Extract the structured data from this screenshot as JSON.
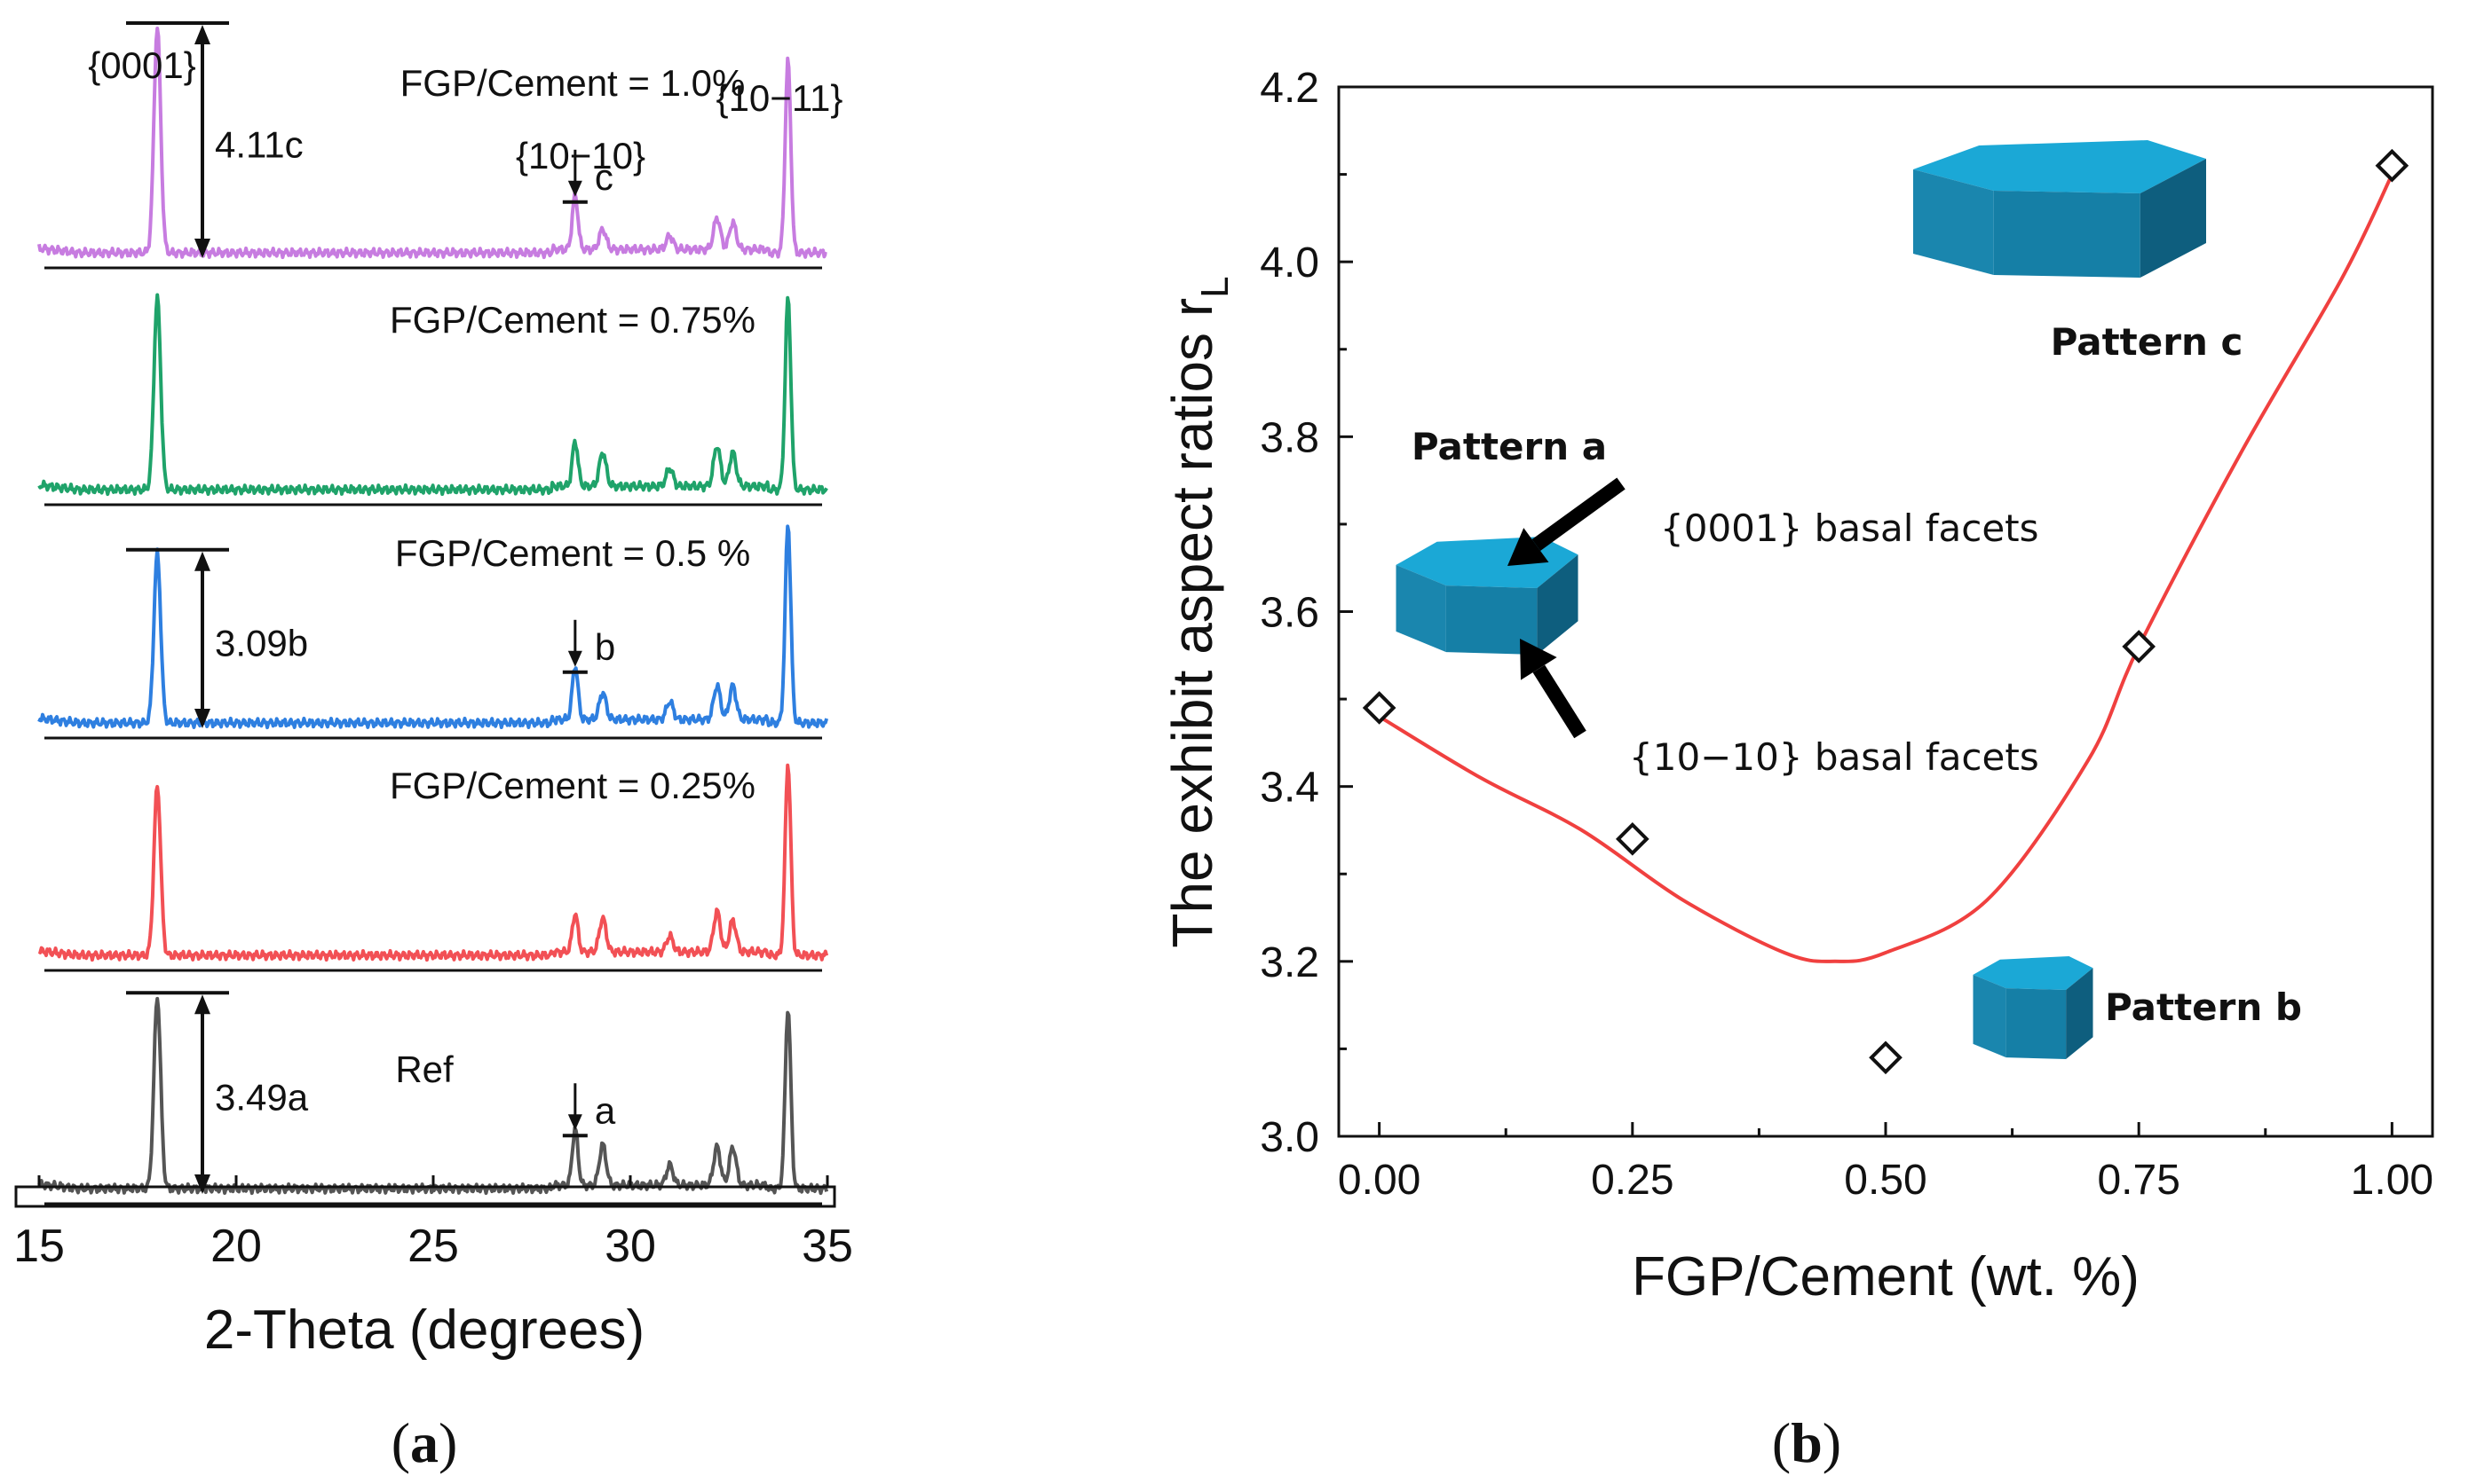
{
  "panel_labels": {
    "a": "(a)",
    "b": "(b)"
  },
  "chart_data": [
    {
      "id": "a",
      "type": "line",
      "xlabel": "2-Theta (degrees)",
      "xlim": [
        15,
        35
      ],
      "xticks": [
        15,
        20,
        25,
        30,
        35
      ],
      "x_tick_labels": [
        "15",
        "20",
        "25",
        "30",
        "35"
      ],
      "peaks": [
        {
          "label": "{0001}",
          "x": 18.0
        },
        {
          "label": "{10−10}",
          "x": 28.6
        },
        {
          "label": "{10−11}",
          "x": 34.0
        }
      ],
      "minor_peaks": [
        29.3,
        31.0,
        32.2,
        32.6
      ],
      "series": [
        {
          "name": "FGP/Cement = 1.0%",
          "color": "#C77CE0",
          "peak_0001": 1.0,
          "peak_1010": 0.24,
          "peak_1011": 0.85,
          "minor": [
            0.09,
            0.06,
            0.14,
            0.12
          ],
          "ratio_label": "4.11c",
          "marker": "c"
        },
        {
          "name": "FGP/Cement = 0.75%",
          "color": "#1FA36A",
          "peak_0001": 0.85,
          "peak_1010": 0.2,
          "peak_1011": 0.85,
          "minor": [
            0.15,
            0.08,
            0.18,
            0.15
          ],
          "ratio_label": "",
          "marker": ""
        },
        {
          "name": "FGP/Cement  = 0.5 %",
          "color": "#2E7FE0",
          "peak_0001": 0.75,
          "peak_1010": 0.24,
          "peak_1011": 0.88,
          "minor": [
            0.12,
            0.08,
            0.15,
            0.15
          ],
          "ratio_label": "3.09b",
          "marker": "b"
        },
        {
          "name": "FGP/Cement = 0.25%",
          "color": "#F25055",
          "peak_0001": 0.75,
          "peak_1010": 0.17,
          "peak_1011": 0.85,
          "minor": [
            0.15,
            0.07,
            0.18,
            0.14
          ],
          "ratio_label": "",
          "marker": ""
        },
        {
          "name": "Ref",
          "color": "#555555",
          "peak_0001": 0.85,
          "peak_1010": 0.25,
          "peak_1011": 0.8,
          "minor": [
            0.18,
            0.09,
            0.17,
            0.17
          ],
          "ratio_label": "3.49a",
          "marker": "a"
        }
      ]
    },
    {
      "id": "b",
      "type": "scatter",
      "xlabel": "FGP/Cement (wt. %)",
      "ylabel": "The exhibit aspect ratios r",
      "ylabel_sub": "L",
      "xlim": [
        -0.04,
        1.04
      ],
      "ylim": [
        3.0,
        4.2
      ],
      "xticks": [
        0.0,
        0.25,
        0.5,
        0.75,
        1.0
      ],
      "yticks": [
        3.0,
        3.2,
        3.4,
        3.6,
        3.8,
        4.0,
        4.2
      ],
      "x_tick_labels": [
        "0.00",
        "0.25",
        "0.50",
        "0.75",
        "1.00"
      ],
      "y_tick_labels": [
        "3.0",
        "3.2",
        "3.4",
        "3.6",
        "3.8",
        "4.0",
        "4.2"
      ],
      "x": [
        0.0,
        0.25,
        0.5,
        0.75,
        1.0
      ],
      "y": [
        3.49,
        3.34,
        3.09,
        3.56,
        4.11
      ],
      "fit_curve": {
        "color": "#F0403F",
        "points": [
          [
            0.0,
            3.48
          ],
          [
            0.1,
            3.41
          ],
          [
            0.2,
            3.35
          ],
          [
            0.3,
            3.27
          ],
          [
            0.4,
            3.21
          ],
          [
            0.45,
            3.2
          ],
          [
            0.5,
            3.21
          ],
          [
            0.6,
            3.27
          ],
          [
            0.7,
            3.43
          ],
          [
            0.75,
            3.56
          ],
          [
            0.85,
            3.78
          ],
          [
            0.95,
            3.98
          ],
          [
            1.0,
            4.1
          ]
        ]
      },
      "annotations": {
        "pattern_a": "Pattern a",
        "pattern_b": "Pattern b",
        "pattern_c": "Pattern c",
        "basal_0001": "{0001} basal facets",
        "basal_1010": "{10−10} basal facets"
      }
    }
  ]
}
